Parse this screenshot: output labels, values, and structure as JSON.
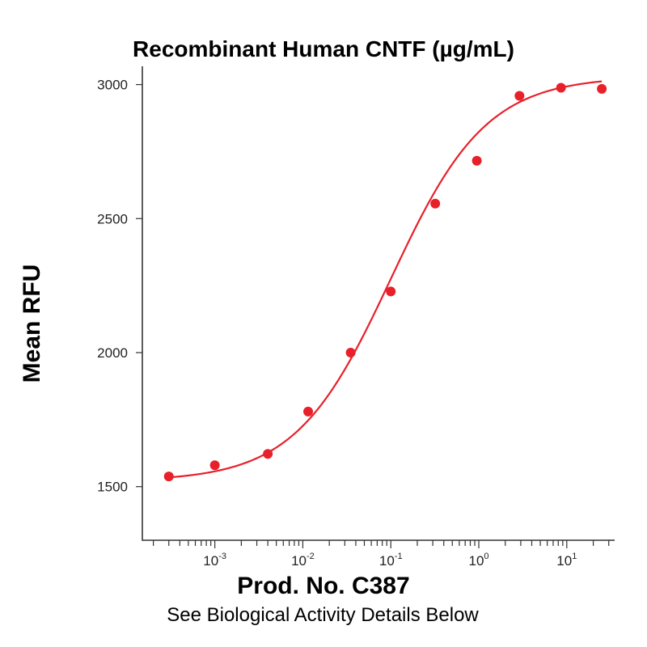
{
  "chart_data": {
    "type": "scatter",
    "title": "Recombinant Human CNTF (µg/mL)",
    "ylabel": "Mean RFU",
    "xlabel": "Prod. No. C387",
    "subtitle": "See Biological Activity Details Below",
    "x_scale": "log",
    "xlim": [
      0.00015,
      35
    ],
    "ylim": [
      1300,
      3050
    ],
    "yticks": [
      1500,
      2000,
      2500,
      3000
    ],
    "ytick_labels": [
      "1500",
      "2000",
      "2500",
      "3000"
    ],
    "xticks": [
      {
        "value": 0.001,
        "base": "10",
        "exp": "-3"
      },
      {
        "value": 0.01,
        "base": "10",
        "exp": "-2"
      },
      {
        "value": 0.1,
        "base": "10",
        "exp": "-1"
      },
      {
        "value": 1,
        "base": "10",
        "exp": "0"
      },
      {
        "value": 10,
        "base": "10",
        "exp": "1"
      }
    ],
    "series": [
      {
        "kind": "points",
        "color": "#e8202a",
        "x": [
          0.0003,
          0.001,
          0.004,
          0.0115,
          0.035,
          0.1,
          0.32,
          0.95,
          2.9,
          8.6,
          25
        ],
        "y": [
          1538,
          1580,
          1622,
          1780,
          2000,
          2228,
          2556,
          2716,
          2958,
          2988,
          2984
        ]
      },
      {
        "kind": "fit",
        "color": "#e8202a",
        "model": "4PL",
        "bottom": 1520,
        "top": 3030,
        "ec50": 0.1,
        "hill": 0.8,
        "x_range": [
          0.0003,
          25
        ]
      }
    ],
    "grid": false,
    "legend": "none"
  }
}
